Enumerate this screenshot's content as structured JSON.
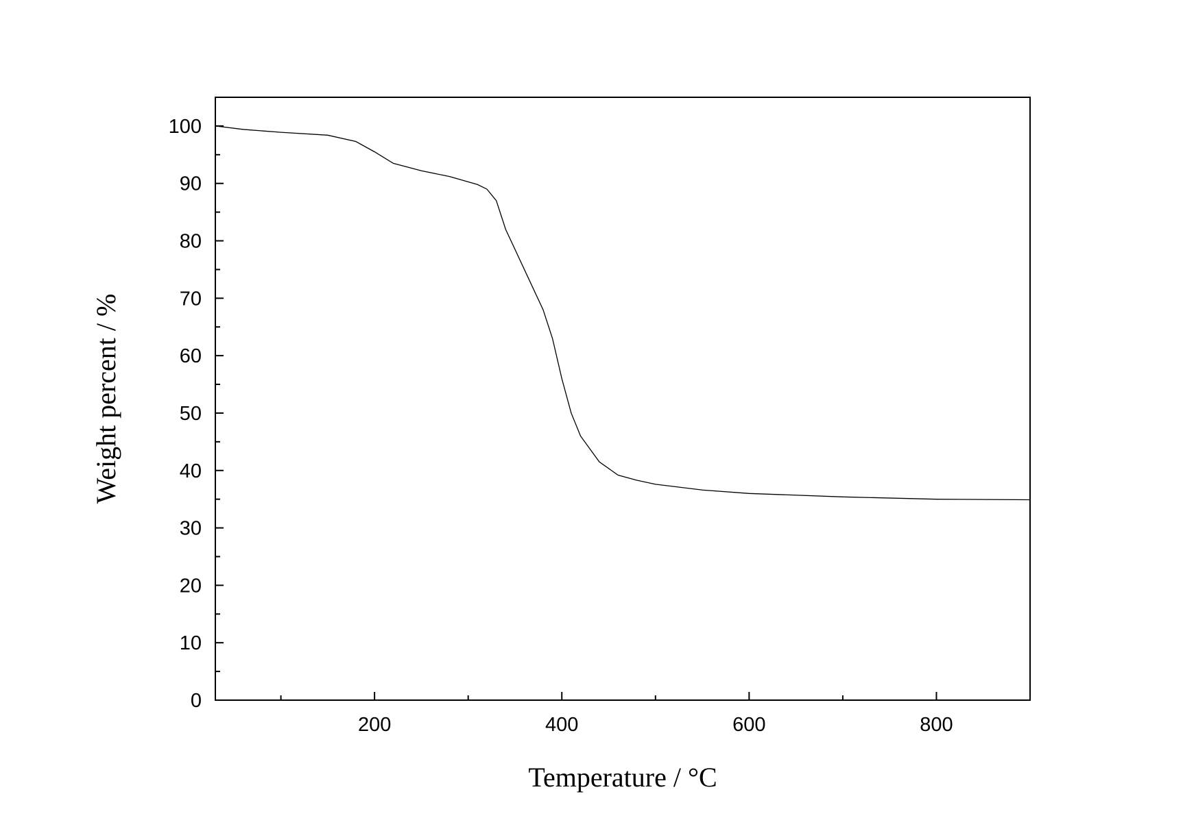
{
  "chart_data": {
    "type": "line",
    "x_label": "Temperature / °C",
    "y_label": "Weight percent / %",
    "series": [
      {
        "color": "#000000",
        "x": [
          30,
          60,
          100,
          150,
          180,
          200,
          220,
          250,
          280,
          310,
          320,
          330,
          340,
          360,
          380,
          390,
          400,
          410,
          420,
          440,
          460,
          480,
          500,
          550,
          600,
          700,
          800,
          900
        ],
        "values": [
          100,
          99.4,
          98.9,
          98.4,
          97.3,
          95.5,
          93.5,
          92.2,
          91.2,
          89.8,
          89,
          87,
          82,
          75,
          68,
          63,
          56,
          50,
          46,
          41.5,
          39.2,
          38.3,
          37.6,
          36.6,
          36.0,
          35.4,
          35.0,
          34.9
        ]
      }
    ],
    "xlim": [
      30,
      900
    ],
    "ylim": [
      0,
      105
    ],
    "xticks": [
      200,
      400,
      600,
      800
    ],
    "yticks": [
      0,
      10,
      20,
      30,
      40,
      50,
      60,
      70,
      80,
      90,
      100
    ],
    "xminorticks": [
      100,
      300,
      500,
      700
    ],
    "yminorticks": [
      5,
      15,
      25,
      35,
      45,
      55,
      65,
      75,
      85,
      95
    ],
    "grid": false
  }
}
